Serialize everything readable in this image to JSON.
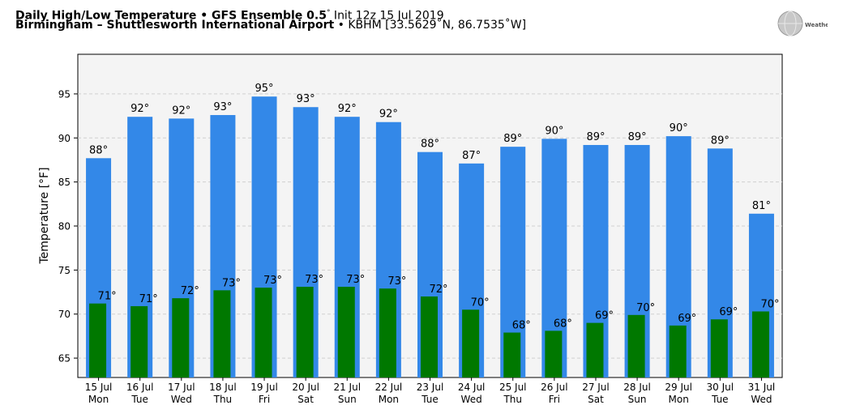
{
  "header": {
    "line1_bold": "Daily High/Low Temperature • GFS Ensemble 0.5",
    "line1_sup": "°",
    "line1_rest": " Init 12z 15 Jul 2019",
    "line2_bold": "Birmingham – Shuttlesworth International Airport",
    "line2_rest": " • KBHM [33.5629˚N, 86.7535˚W]"
  },
  "logo": {
    "text": "WeatherBELL",
    "icon": "weatherbell-globe-logo"
  },
  "colors": {
    "high": "#3388e8",
    "low": "#007800",
    "plot_bg": "#f4f4f4",
    "grid": "#d0d0d0"
  },
  "chart_data": {
    "type": "bar",
    "ylabel": "Temperature [°F]",
    "xlabel": "",
    "ylim": [
      62.8,
      99.5
    ],
    "yticks": [
      65,
      70,
      75,
      80,
      85,
      90,
      95
    ],
    "grid": true,
    "categories": [
      "15 Jul",
      "16 Jul",
      "17 Jul",
      "18 Jul",
      "19 Jul",
      "20 Jul",
      "21 Jul",
      "22 Jul",
      "23 Jul",
      "24 Jul",
      "25 Jul",
      "26 Jul",
      "27 Jul",
      "28 Jul",
      "29 Jul",
      "30 Jul",
      "31 Jul"
    ],
    "weekdays": [
      "Mon",
      "Tue",
      "Wed",
      "Thu",
      "Fri",
      "Sat",
      "Sun",
      "Mon",
      "Tue",
      "Wed",
      "Thu",
      "Fri",
      "Sat",
      "Sun",
      "Mon",
      "Tue",
      "Wed"
    ],
    "series": [
      {
        "values": [
          87.7,
          92.4,
          92.2,
          92.6,
          94.7,
          93.5,
          92.4,
          91.8,
          88.4,
          87.1,
          89.0,
          89.9,
          89.2,
          89.2,
          90.2,
          88.8,
          81.4
        ],
        "labels": [
          "88°",
          "92°",
          "92°",
          "93°",
          "95°",
          "93°",
          "92°",
          "92°",
          "88°",
          "87°",
          "89°",
          "90°",
          "89°",
          "89°",
          "90°",
          "89°",
          "81°"
        ]
      },
      {
        "values": [
          71.2,
          70.9,
          71.8,
          72.7,
          73.0,
          73.1,
          73.1,
          72.9,
          72.0,
          70.5,
          67.9,
          68.1,
          69.0,
          69.9,
          68.7,
          69.4,
          70.3
        ],
        "labels": [
          "71°",
          "71°",
          "72°",
          "73°",
          "73°",
          "73°",
          "73°",
          "73°",
          "72°",
          "70°",
          "68°",
          "68°",
          "69°",
          "70°",
          "69°",
          "69°",
          "70°"
        ]
      }
    ]
  }
}
